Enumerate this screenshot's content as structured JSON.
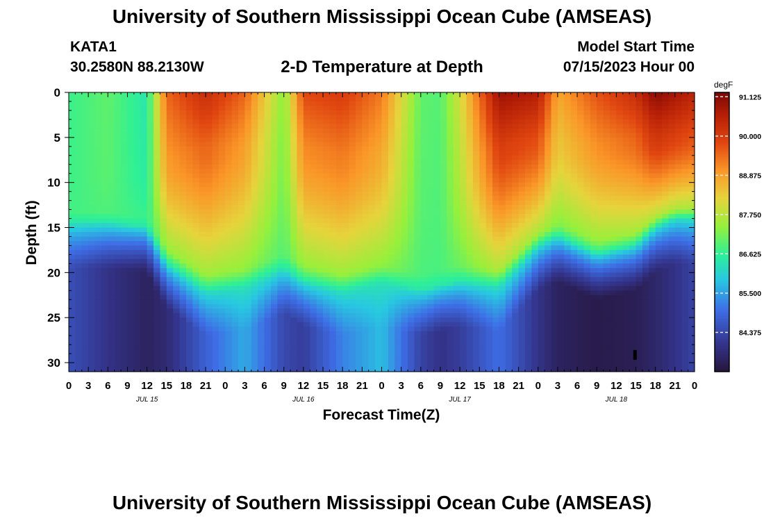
{
  "header": {
    "title": "University of Southern Mississippi Ocean Cube (AMSEAS)",
    "station": "KATA1",
    "coords": "30.2580N  88.2130W",
    "subtitle": "2-D Temperature at Depth",
    "model_start_label": "Model Start Time",
    "model_start_value": "07/15/2023 Hour 00"
  },
  "footer": {
    "title": "University of Southern Mississippi Ocean Cube (AMSEAS)"
  },
  "chart_data": {
    "type": "heatmap",
    "title": "2-D Temperature at Depth",
    "xlabel": "Forecast Time(Z)",
    "ylabel": "Depth (ft)",
    "x_unit": "hours",
    "xlim": [
      0,
      96
    ],
    "ylim": [
      0,
      31
    ],
    "y_inverted": true,
    "x_tick_labels": [
      "0",
      "3",
      "6",
      "9",
      "12",
      "15",
      "18",
      "21",
      "0",
      "3",
      "6",
      "9",
      "12",
      "15",
      "18",
      "21",
      "0",
      "3",
      "6",
      "9",
      "12",
      "15",
      "18",
      "21",
      "0",
      "3",
      "6",
      "9",
      "12",
      "15",
      "18",
      "21",
      "0"
    ],
    "day_labels": [
      "JUL 15",
      "JUL 16",
      "JUL 17",
      "JUL 18"
    ],
    "y_ticks": [
      0,
      5,
      10,
      15,
      20,
      25,
      30
    ],
    "colorbar": {
      "unit": "degF",
      "range": [
        83.25,
        91.25
      ],
      "ticks": [
        91.125,
        90.0,
        88.875,
        87.75,
        86.625,
        85.5,
        84.375
      ],
      "tick_labels": [
        "91.125",
        "90.000",
        "88.875",
        "87.750",
        "86.625",
        "85.500",
        "84.375"
      ]
    },
    "profile": {
      "description_x_hours": [
        0,
        6,
        12,
        15,
        21,
        27,
        33,
        36,
        42,
        48,
        54,
        57,
        60,
        66,
        72,
        75,
        81,
        87,
        90,
        93,
        96
      ],
      "thermocline_depth_ft": [
        14.5,
        14.5,
        15,
        19,
        22,
        21.5,
        19.5,
        21,
        22,
        21,
        22,
        21.5,
        21,
        21.5,
        17,
        16,
        18,
        17,
        15,
        14,
        14
      ],
      "surface_temp_degF": [
        86.7,
        87.0,
        86.4,
        89.5,
        90.3,
        89.5,
        87.3,
        89.8,
        90.0,
        89.3,
        87.0,
        86.9,
        88.0,
        90.9,
        90.6,
        88.8,
        89.7,
        90.3,
        91.1,
        90.8,
        90.5
      ],
      "bottom_temp_degF": [
        84.5,
        84.0,
        83.6,
        83.8,
        84.8,
        85.6,
        84.4,
        84.2,
        85.2,
        85.8,
        84.3,
        84.0,
        84.2,
        85.0,
        84.0,
        83.6,
        83.4,
        83.5,
        83.7,
        84.0,
        84.3
      ],
      "surface_layer_depth_ft": [
        9,
        9,
        9,
        8,
        6,
        6,
        6,
        6,
        7,
        7,
        8,
        8,
        8,
        6,
        5,
        6,
        6,
        5,
        5,
        5,
        5
      ]
    }
  }
}
